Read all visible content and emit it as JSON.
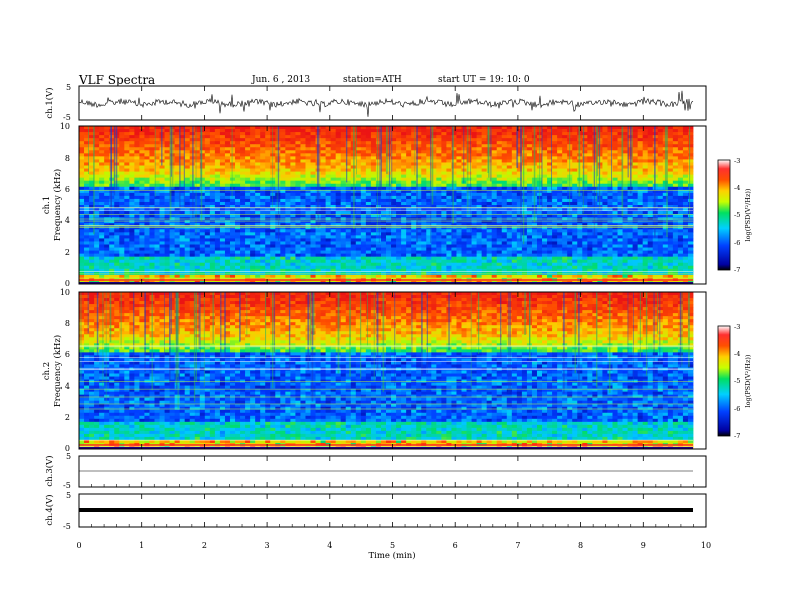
{
  "header": {
    "title": "VLF  Spectra",
    "date": "Jun. 6  , 2013",
    "station": "station=ATH",
    "start": "start  UT  =    19: 10: 0"
  },
  "chart_data": [
    {
      "type": "line",
      "panel": "ch1-waveform",
      "ylabel": "ch.1(V)",
      "ylim": [
        -5,
        5
      ],
      "yticks": [
        "5",
        "-5"
      ],
      "series": [
        {
          "values": [
            -0.2,
            0.1,
            -0.4,
            0.3,
            -0.1,
            0.2,
            -0.3,
            0.4,
            0.0,
            -0.2
          ]
        }
      ]
    },
    {
      "type": "heatmap",
      "panel": "ch1-spectrogram",
      "ylabel": "Frequency  (kHz)",
      "channel_label": "ch.1",
      "ylim": [
        0,
        10
      ],
      "yticks": [
        "0",
        "2",
        "4",
        "6",
        "8",
        "10"
      ],
      "colorbar": {
        "label": "log(PSD(V²/Hz))",
        "range": [
          -7,
          -3
        ],
        "ticks": [
          "-3",
          "-4",
          "-5",
          "-6",
          "-7"
        ]
      }
    },
    {
      "type": "heatmap",
      "panel": "ch2-spectrogram",
      "ylabel": "Frequency  (kHz)",
      "channel_label": "ch.2",
      "ylim": [
        0,
        10
      ],
      "yticks": [
        "0",
        "2",
        "4",
        "6",
        "8",
        "10"
      ],
      "colorbar": {
        "label": "log(PSD(V²/Hz))",
        "range": [
          -7,
          -3
        ],
        "ticks": [
          "-3",
          "-4",
          "-5",
          "-6",
          "-7"
        ]
      }
    },
    {
      "type": "line",
      "panel": "ch3-waveform",
      "ylabel": "ch.3(V)",
      "ylim": [
        -5,
        5
      ],
      "yticks": [
        "5",
        "-5"
      ],
      "series": [
        {
          "values": [
            0.0,
            0.0,
            0.0,
            0.0,
            0.0
          ]
        }
      ]
    },
    {
      "type": "line",
      "panel": "ch4-waveform",
      "ylabel": "ch.4(V)",
      "ylim": [
        -5,
        5
      ],
      "yticks": [
        "5",
        "-5"
      ],
      "series": [
        {
          "values": [
            0.0,
            0.0,
            0.0,
            0.0,
            0.0
          ]
        }
      ]
    }
  ],
  "xaxis": {
    "label": "Time  (min)",
    "range": [
      0,
      10
    ],
    "ticks": [
      "0",
      "1",
      "2",
      "3",
      "4",
      "5",
      "6",
      "7",
      "8",
      "9",
      "10"
    ],
    "data_end": 9.8
  }
}
